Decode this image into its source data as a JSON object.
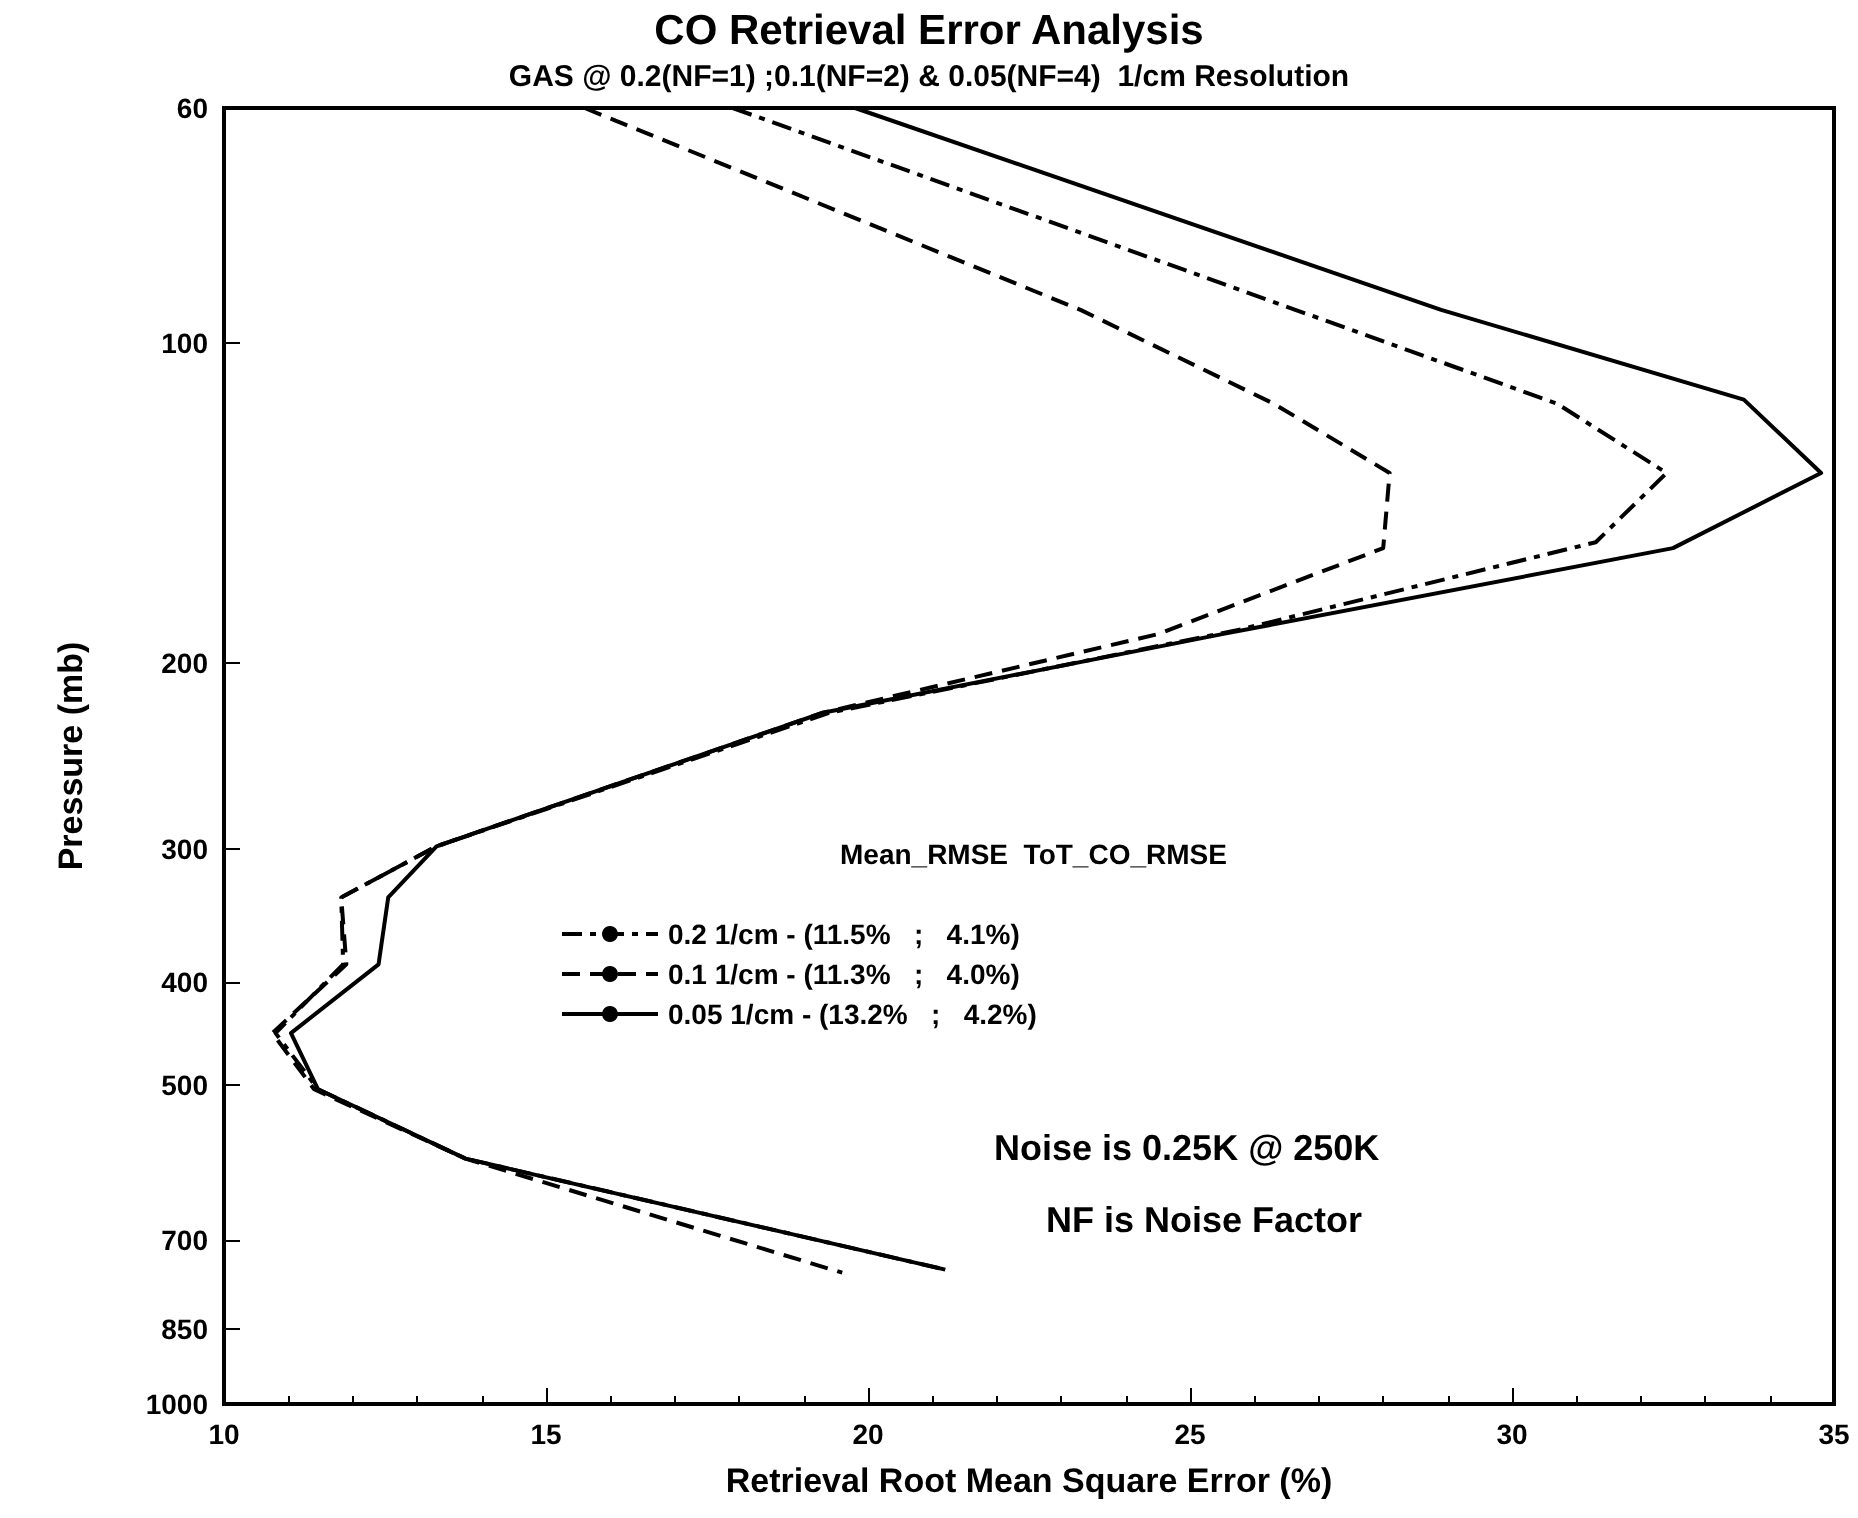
{
  "chart_data": {
    "type": "line",
    "title": "CO Retrieval Error Analysis",
    "subtitle": "GAS @ 0.2(NF=1) ;0.1(NF=2) & 0.05(NF=4)  1/cm Resolution",
    "xlabel": "Retrieval Root Mean Square Error (%)",
    "ylabel": "Pressure (mb)",
    "legend_title": "Mean_RMSE  ToT_CO_RMSE",
    "annotations": [
      "Noise is 0.25K @ 250K",
      "NF is Noise Factor"
    ],
    "series": [
      {
        "name": "0.2 1/cm - (11.5%   ;   4.1%)",
        "color": "#000000",
        "line_style": "dashdot",
        "x": [
          17.9,
          30.7,
          32.4,
          31.3,
          25.8,
          19.4,
          13.3,
          11.82,
          11.85,
          10.8,
          11.46,
          13.75,
          21.2
        ],
        "values": [
          60,
          114,
          132.5,
          154,
          186,
          223,
          298,
          333,
          385,
          447,
          505,
          587,
          747
        ]
      },
      {
        "name": "0.1 1/cm - (11.3%   ;   4.0%)",
        "color": "#000000",
        "line_style": "dashed",
        "x": [
          15.6,
          23.3,
          26.3,
          28.1,
          28.0,
          24.5,
          19.3,
          13.3,
          11.82,
          11.9,
          10.75,
          11.4,
          13.75,
          19.6
        ],
        "values": [
          60,
          93,
          114,
          132.5,
          156,
          188,
          223,
          298,
          333,
          385,
          447,
          505,
          587,
          752
        ]
      },
      {
        "name": "0.05 1/cm - (13.2%   ;   4.2%)",
        "color": "#000000",
        "line_style": "solid",
        "x": [
          19.8,
          28.9,
          33.6,
          34.8,
          32.5,
          25.5,
          19.3,
          13.3,
          12.55,
          12.4,
          11.04,
          11.46,
          13.75,
          21.2
        ],
        "values": [
          60,
          93,
          113,
          132.5,
          156,
          188,
          223,
          298,
          333,
          385,
          447,
          505,
          587,
          747
        ]
      }
    ],
    "xlim": [
      10,
      35
    ],
    "xticks": [
      10,
      15,
      20,
      25,
      30,
      35
    ],
    "ylim": [
      1000,
      60
    ],
    "yticks": [
      60,
      100,
      200,
      300,
      400,
      500,
      700,
      850,
      {
        "value": 1000,
        "label": "1000"
      }
    ],
    "log": "y",
    "grid": false,
    "legend": "center",
    "marker": "none"
  }
}
